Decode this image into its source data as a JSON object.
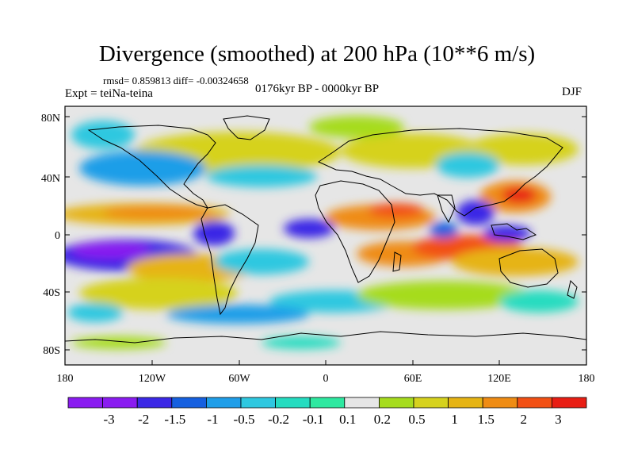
{
  "title": "Divergence (smoothed) at 200 hPa (10**6 m/s)",
  "stats": "rmsd= 0.859813 diff= -0.00324658",
  "experiment": "Expt = teiNa-teina",
  "period": "0176kyr BP - 0000kyr BP",
  "season": "DJF",
  "lat_ticks": [
    "80N",
    "40N",
    "0",
    "40S",
    "80S"
  ],
  "lon_ticks": [
    "180",
    "120W",
    "60W",
    "0",
    "60E",
    "120E",
    "180"
  ],
  "colorbar": {
    "labels": [
      "-3",
      "-2",
      "-1.5",
      "-1",
      "-0.5",
      "-0.2",
      "-0.1",
      "0.1",
      "0.2",
      "0.5",
      "1",
      "1.5",
      "2",
      "3"
    ],
    "colors": [
      "#8a1cf0",
      "#3b28e6",
      "#1660e0",
      "#1f9ee8",
      "#2fc8e0",
      "#25dcc0",
      "#2ee8a0",
      "#e6e6e6",
      "#a6dc1e",
      "#d6d21e",
      "#e6b414",
      "#ef8c14",
      "#f25014",
      "#e81e14"
    ]
  },
  "colors": {
    "land_outline": "#000000",
    "no_data": "#e6e6e6"
  }
}
